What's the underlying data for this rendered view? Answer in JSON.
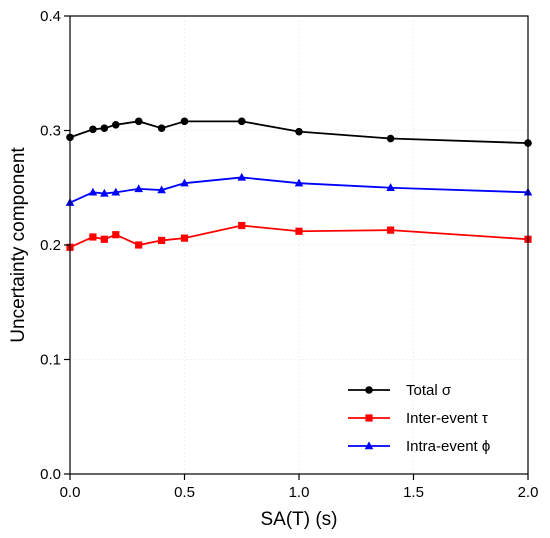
{
  "chart_data": {
    "type": "line",
    "xlabel": "SA(T) (s)",
    "ylabel": "Uncertainty component",
    "xlim": [
      0,
      2.0
    ],
    "ylim": [
      0,
      0.4
    ],
    "xticks": [
      "0.0",
      "0.5",
      "1.0",
      "1.5",
      "2.0"
    ],
    "yticks": [
      "0.0",
      "0.1",
      "0.2",
      "0.3",
      "0.4"
    ],
    "grid": true,
    "legend_position": "bottom-right",
    "x": [
      0.0,
      0.1,
      0.15,
      0.2,
      0.3,
      0.4,
      0.5,
      0.75,
      1.0,
      1.4,
      2.0
    ],
    "series": [
      {
        "name": "Total σ",
        "color": "#000000",
        "marker": "circle",
        "values": [
          0.294,
          0.301,
          0.302,
          0.305,
          0.308,
          0.302,
          0.308,
          0.308,
          0.299,
          0.293,
          0.289
        ]
      },
      {
        "name": "Inter-event τ",
        "color": "#ff0000",
        "marker": "square",
        "values": [
          0.198,
          0.207,
          0.205,
          0.209,
          0.2,
          0.204,
          0.206,
          0.217,
          0.212,
          0.213,
          0.205
        ]
      },
      {
        "name": "Intra-event ϕ",
        "color": "#0000ff",
        "marker": "triangle",
        "values": [
          0.237,
          0.246,
          0.245,
          0.246,
          0.249,
          0.248,
          0.254,
          0.259,
          0.254,
          0.25,
          0.246
        ]
      }
    ]
  }
}
